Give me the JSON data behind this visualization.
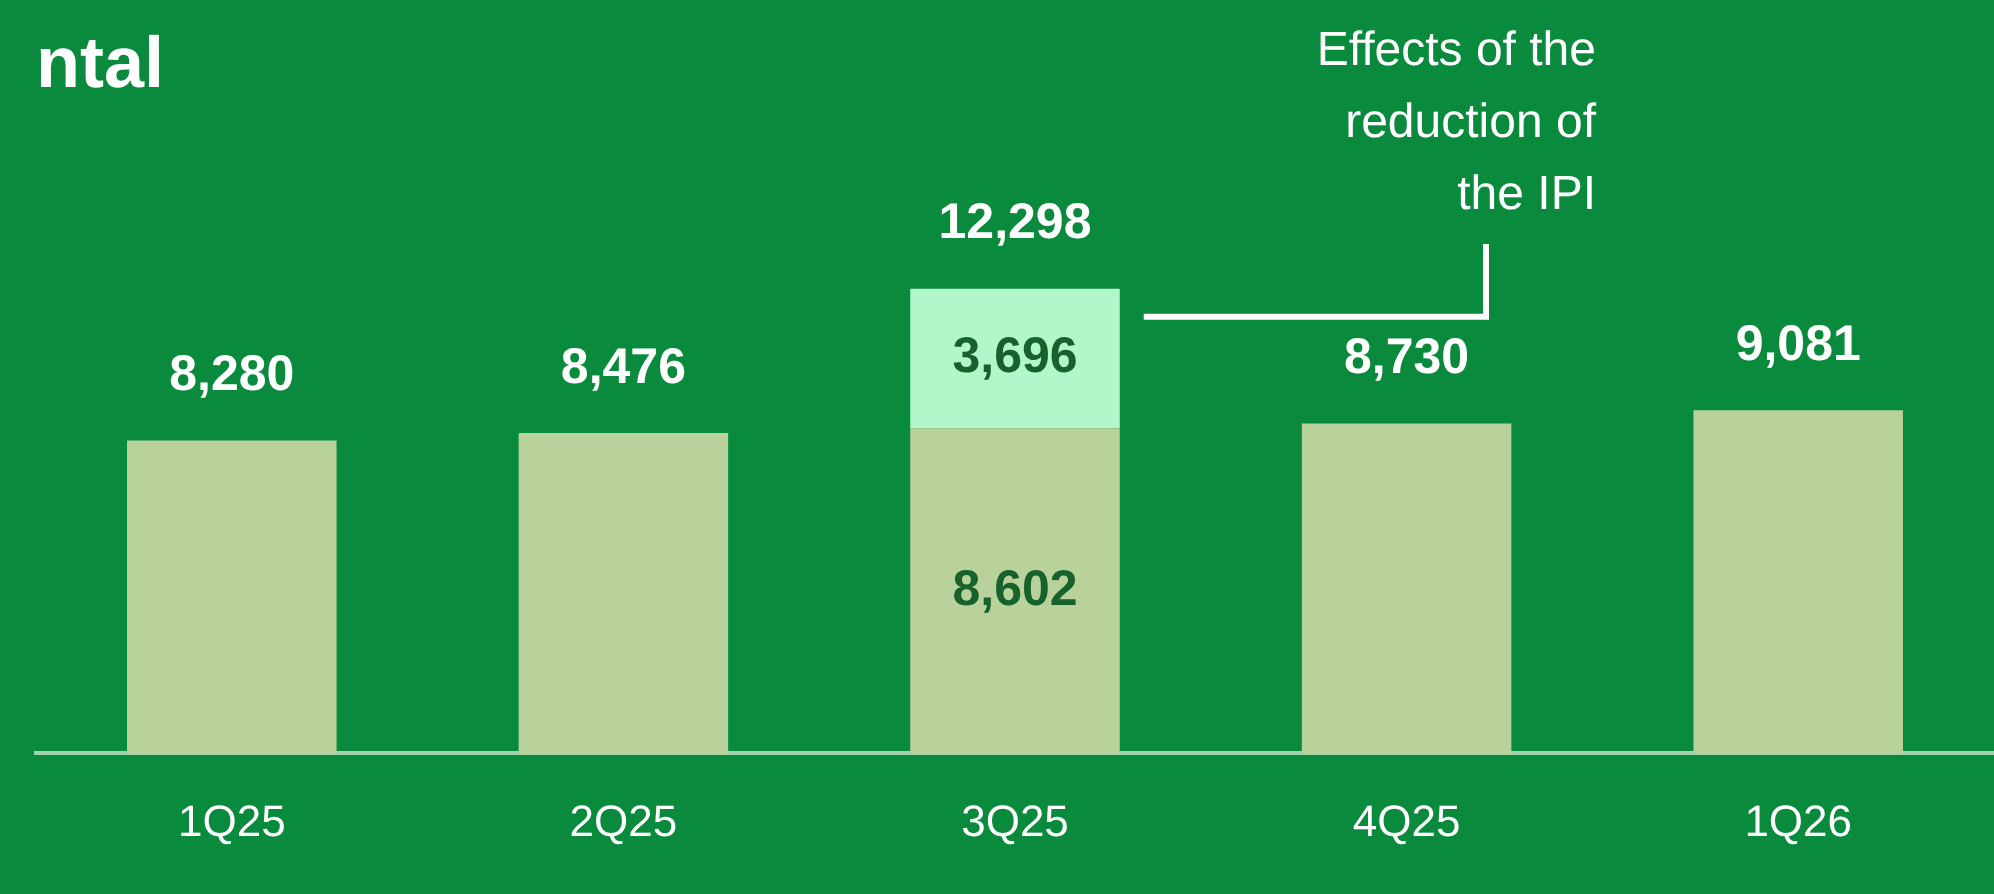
{
  "chart_data": {
    "type": "bar",
    "title": "ntal",
    "categories": [
      "1Q25",
      "2Q25",
      "3Q25",
      "4Q25",
      "1Q26"
    ],
    "stacked": true,
    "series": [
      {
        "color": "#b9d19a",
        "values": [
          8280,
          8476,
          8602,
          8730,
          9081
        ],
        "value_labels": [
          "8,280",
          "8,476",
          "8,602",
          "8,730",
          "9,081"
        ]
      },
      {
        "color": "#b2f7c9",
        "values": [
          null,
          null,
          3696,
          null,
          null
        ],
        "value_labels": [
          null,
          null,
          "3,696",
          null,
          null
        ]
      }
    ],
    "totals": [
      null,
      null,
      "12,298",
      null,
      null
    ],
    "annotations": [
      "Effects of the reduction of the IPI"
    ],
    "grid": false,
    "legend": false,
    "tick_labels": "x"
  }
}
